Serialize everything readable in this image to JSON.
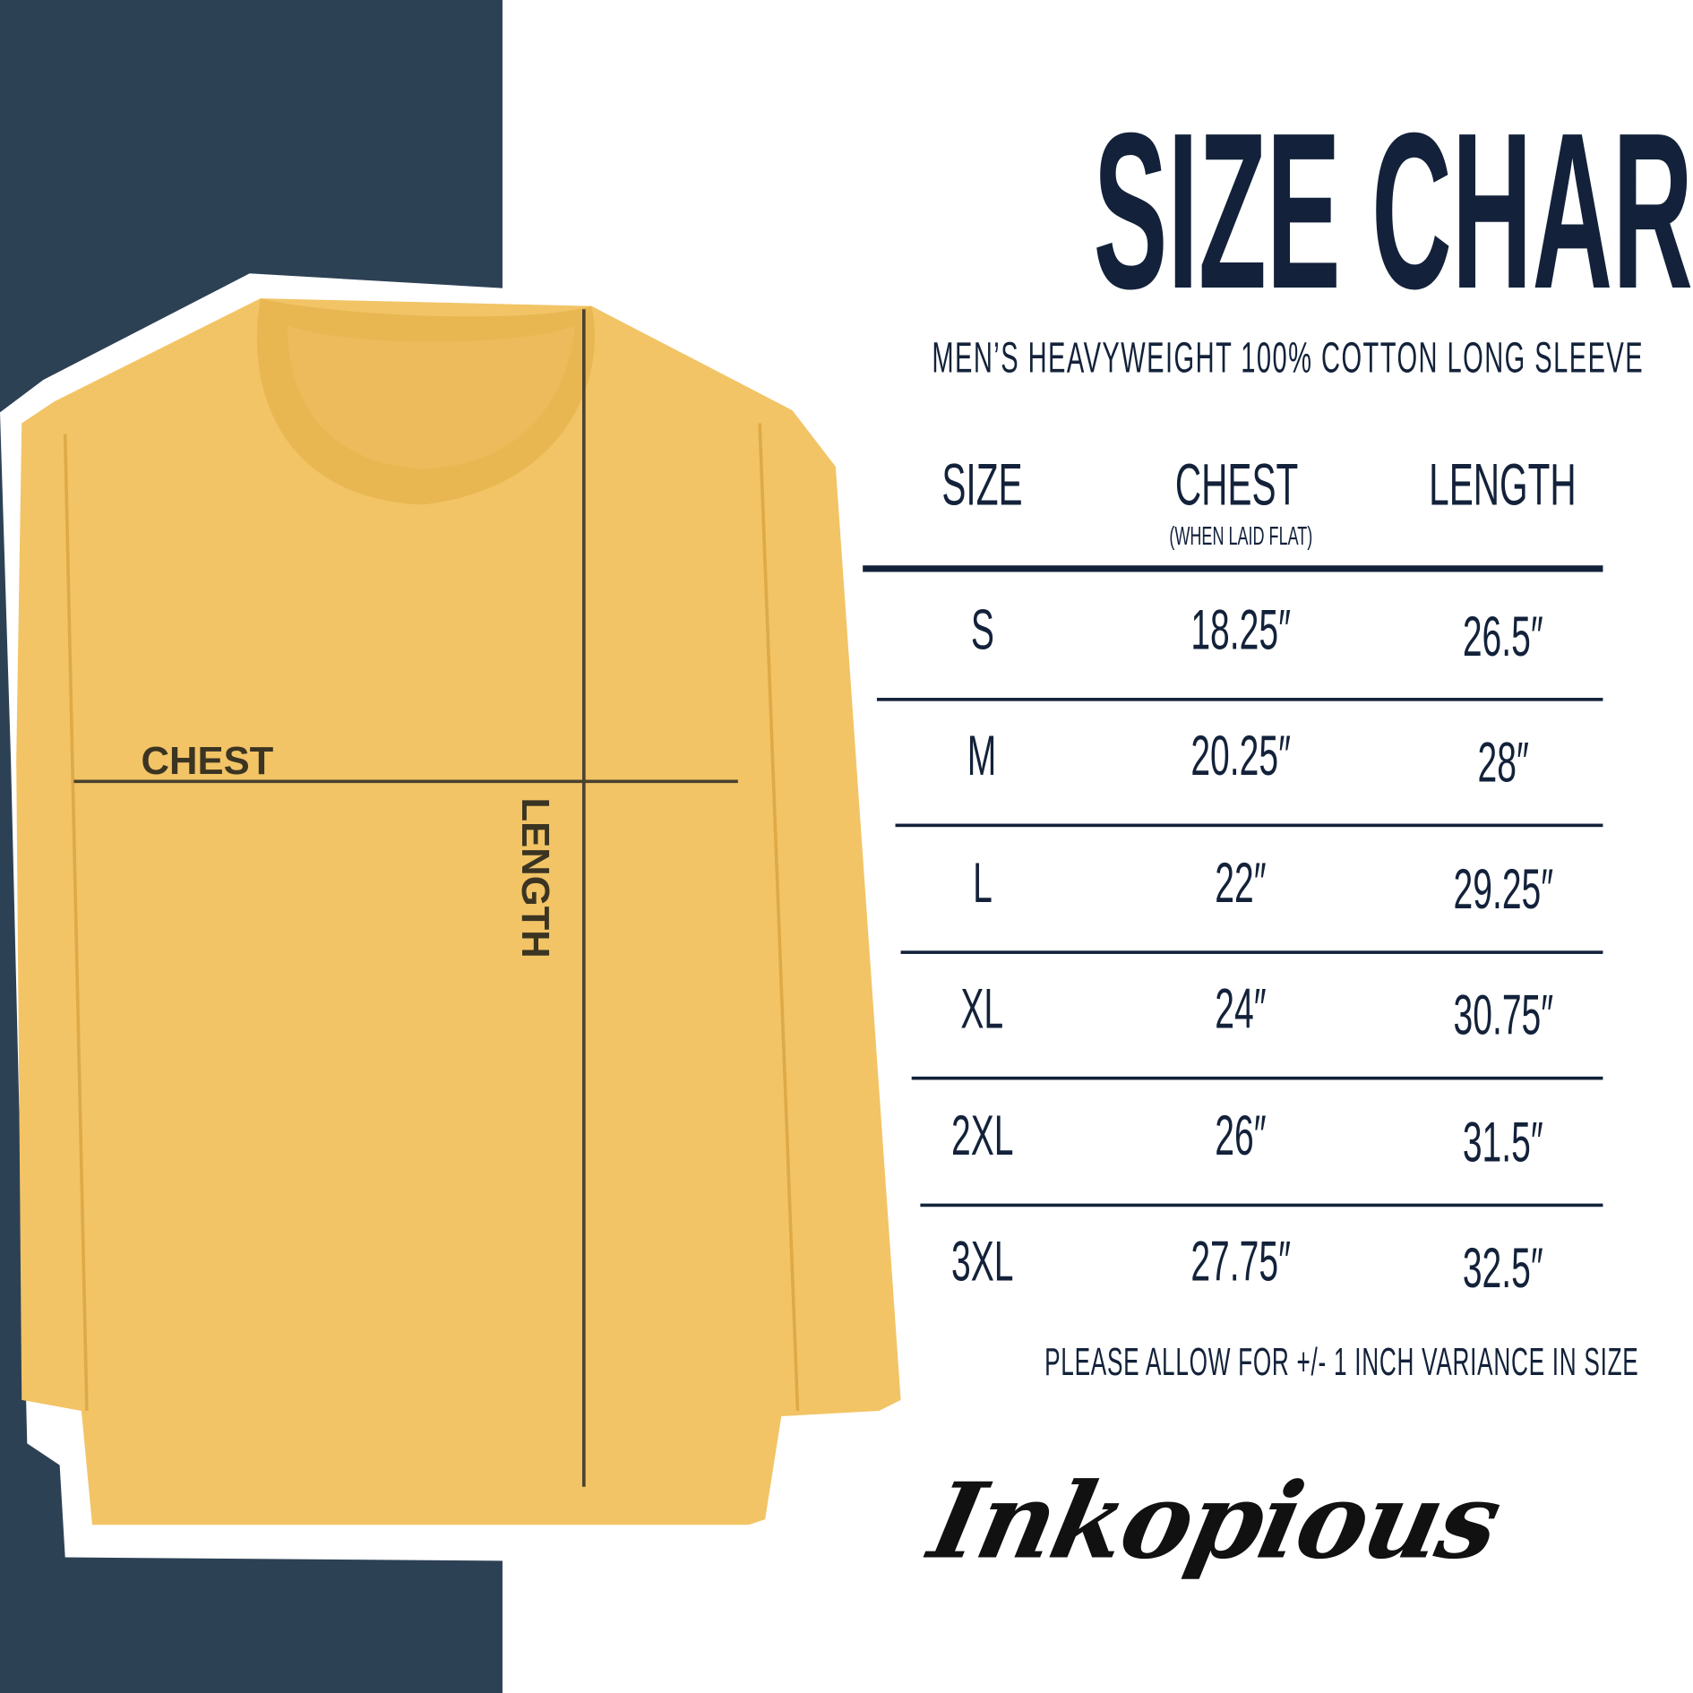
{
  "title": "SIZE CHART",
  "subtitle": "MEN’S HEAVYWEIGHT 100% COTTON LONG SLEEVE",
  "diagram_labels": {
    "chest": "CHEST",
    "length": "LENGTH"
  },
  "colors": {
    "navy_panel": "#2d4155",
    "text": "#13223a",
    "shirt": "#f2c466"
  },
  "table": {
    "headers": [
      {
        "label": "SIZE"
      },
      {
        "label": "CHEST",
        "note": "(WHEN LAID FLAT)"
      },
      {
        "label": "LENGTH"
      }
    ],
    "rows": [
      {
        "size": "S",
        "chest": "18.25″",
        "length": "26.5″"
      },
      {
        "size": "M",
        "chest": "20.25″",
        "length": "28″"
      },
      {
        "size": "L",
        "chest": "22″",
        "length": "29.25″"
      },
      {
        "size": "XL",
        "chest": "24″",
        "length": "30.75″"
      },
      {
        "size": "2XL",
        "chest": "26″",
        "length": "31.5″"
      },
      {
        "size": "3XL",
        "chest": "27.75″",
        "length": "32.5″"
      }
    ]
  },
  "footnote": "PLEASE ALLOW FOR +/- 1 INCH VARIANCE IN SIZE",
  "brand": "Inkopious"
}
